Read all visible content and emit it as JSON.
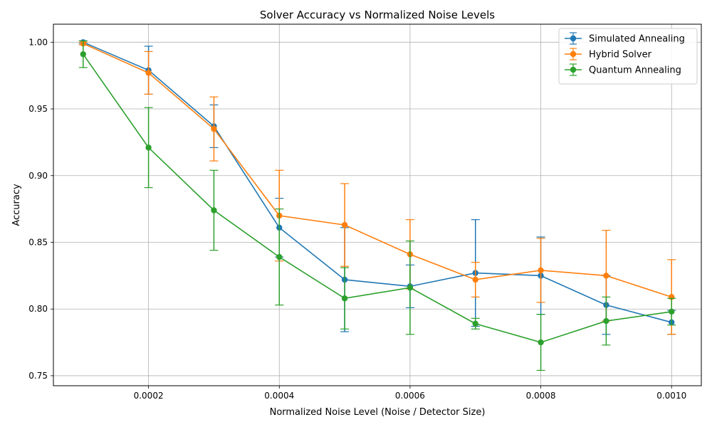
{
  "chart_data": {
    "type": "line",
    "title": "Solver Accuracy vs Normalized Noise Levels",
    "xlabel": "Normalized Noise Level (Noise / Detector Size)",
    "ylabel": "Accuracy",
    "xlim": [
      5.45e-05,
      0.0010455
    ],
    "ylim": [
      0.7425,
      1.0135
    ],
    "xticks": [
      0.0002,
      0.0004,
      0.0006,
      0.0008,
      0.001
    ],
    "xtick_labels": [
      "0.0002",
      "0.0004",
      "0.0006",
      "0.0008",
      "0.0010"
    ],
    "yticks": [
      0.75,
      0.8,
      0.85,
      0.9,
      0.95,
      1.0
    ],
    "ytick_labels": [
      "0.75",
      "0.80",
      "0.85",
      "0.90",
      "0.95",
      "1.00"
    ],
    "grid": true,
    "legend_position": "top-right",
    "x": [
      0.0001,
      0.0002,
      0.0003,
      0.0004,
      0.0005,
      0.0006,
      0.0007,
      0.0008,
      0.0009,
      0.001
    ],
    "series": [
      {
        "name": "Simulated Annealing",
        "color": "#1f77b4",
        "values": [
          1.0,
          0.979,
          0.937,
          0.861,
          0.822,
          0.817,
          0.827,
          0.825,
          0.803,
          0.79
        ],
        "errors": [
          0.001,
          0.018,
          0.016,
          0.022,
          0.039,
          0.016,
          0.04,
          0.029,
          0.022,
          0.009
        ]
      },
      {
        "name": "Hybrid Solver",
        "color": "#ff7f0e",
        "values": [
          0.999,
          0.977,
          0.935,
          0.87,
          0.863,
          0.841,
          0.822,
          0.829,
          0.825,
          0.809
        ],
        "errors": [
          0.001,
          0.016,
          0.024,
          0.034,
          0.031,
          0.026,
          0.013,
          0.024,
          0.034,
          0.028
        ]
      },
      {
        "name": "Quantum Annealing",
        "color": "#2ca02c",
        "values": [
          0.991,
          0.921,
          0.874,
          0.839,
          0.808,
          0.816,
          0.789,
          0.775,
          0.791,
          0.798
        ],
        "errors": [
          0.01,
          0.03,
          0.03,
          0.036,
          0.023,
          0.035,
          0.004,
          0.021,
          0.018,
          0.01
        ]
      }
    ]
  }
}
